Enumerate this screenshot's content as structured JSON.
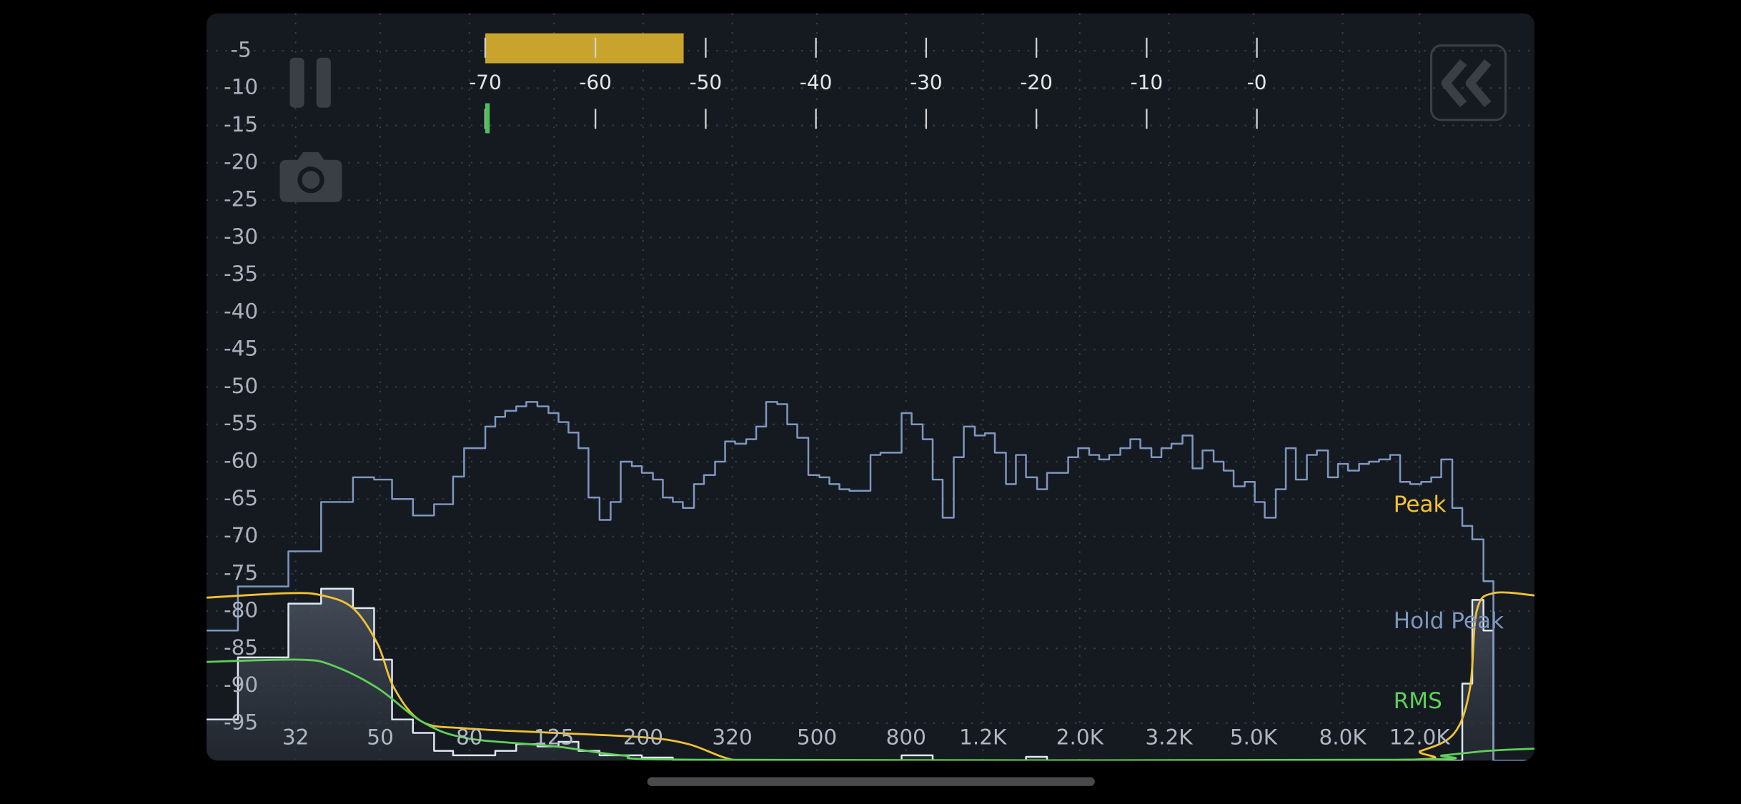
{
  "chart_data": {
    "type": "spectrum",
    "xscale": "log",
    "xlim": [
      20,
      22000
    ],
    "ylim": [
      -100,
      0
    ],
    "xticks": [
      32,
      50,
      80,
      125,
      200,
      320,
      500,
      800,
      {
        "value": 1200,
        "label": "1.2K"
      },
      {
        "value": 2000,
        "label": "2.0K"
      },
      {
        "value": 3200,
        "label": "3.2K"
      },
      {
        "value": 5000,
        "label": "5.0K"
      },
      {
        "value": 8000,
        "label": "8.0K"
      },
      {
        "value": 12000,
        "label": "12.0K"
      }
    ],
    "yticks": [
      -5,
      -10,
      -15,
      -20,
      -25,
      -30,
      -35,
      -40,
      -45,
      -50,
      -55,
      -60,
      -65,
      -70,
      -75,
      -80,
      -85,
      -90,
      -95
    ],
    "grid": true,
    "legend": "right",
    "series": [
      {
        "color": "#dfe8f5",
        "step": true,
        "fill": true,
        "x": [
          20,
          23.6,
          30.8,
          36.6,
          43.3,
          48.4,
          53.2,
          59.4,
          66.4,
          73.4,
          91.7,
          102.4,
          114.5,
          128,
          142.2,
          158.9,
          198.6,
          233.9,
          781.5,
          920.7,
          1506,
          1683,
          15035,
          15849,
          16810,
          17715
        ],
        "values": [
          -94.5,
          -86.2,
          -79,
          -77,
          -79.6,
          -86.5,
          -94.5,
          -96.3,
          -98.7,
          -99.3,
          -98.7,
          -97.8,
          -98.1,
          -97.5,
          -98.7,
          -99.3,
          -99.6,
          -100,
          -99.3,
          -100,
          -99.5,
          -100,
          -89.7,
          -78.5,
          -82.6,
          -100
        ]
      },
      {
        "name": "Hold Peak",
        "color": "#7f97c0",
        "step": true,
        "fill": false,
        "x": [
          20,
          23.6,
          30.8,
          36.6,
          43.3,
          48.4,
          53.2,
          59.4,
          66.4,
          73.4,
          77.8,
          87.0,
          91.7,
          96.6,
          102.4,
          108.0,
          114.5,
          121.4,
          128.0,
          134.9,
          142.2,
          149.9,
          158.9,
          168.5,
          177.7,
          188.4,
          198.6,
          210.6,
          221.9,
          233.9,
          246.6,
          261.5,
          275.6,
          292.2,
          308.1,
          324.8,
          344.4,
          363.0,
          382.6,
          405.7,
          427.6,
          450.8,
          477.9,
          506.7,
          534.1,
          563.0,
          593.5,
          663.3,
          699.2,
          781.5,
          823.9,
          873.5,
          920.7,
          970.5,
          1029,
          1085,
          1150,
          1213,
          1278,
          1355,
          1428,
          1506,
          1597,
          1683,
          1881,
          1983,
          2102,
          2216,
          2336,
          2477,
          2611,
          2753,
          2918,
          3076,
          3243,
          3438,
          3625,
          3821,
          4051,
          4271,
          4502,
          4773,
          5032,
          5304,
          5623,
          5928,
          6249,
          6625,
          6984,
          7404,
          7806,
          8229,
          8724,
          9196,
          9692,
          10276,
          10832,
          11418,
          12106,
          12763,
          13455,
          14262,
          15035,
          15849,
          16810,
          17715
        ],
        "values": [
          -82.6,
          -76.7,
          -72,
          -65.4,
          -62.1,
          -62.4,
          -65,
          -67.2,
          -65.7,
          -62,
          -58.2,
          -55.3,
          -54,
          -53.2,
          -52.6,
          -52,
          -52.6,
          -53.5,
          -54.7,
          -56.1,
          -58.2,
          -64.8,
          -67.8,
          -65.4,
          -60,
          -60.6,
          -61.5,
          -62.4,
          -64.8,
          -65.4,
          -66.2,
          -63,
          -61.8,
          -60,
          -57.3,
          -57.6,
          -57,
          -55.3,
          -52,
          -52.3,
          -55,
          -56.8,
          -61.8,
          -62.1,
          -63,
          -63.7,
          -63.9,
          -59.1,
          -58.8,
          -53.5,
          -55,
          -57,
          -62.4,
          -67.5,
          -59.4,
          -55.3,
          -56.5,
          -56.2,
          -58.8,
          -63,
          -59.1,
          -62.1,
          -63.7,
          -61.5,
          -59.4,
          -58.2,
          -59.1,
          -59.7,
          -59.1,
          -58.2,
          -57,
          -58.2,
          -59.4,
          -58.2,
          -57.6,
          -56.5,
          -60.9,
          -58.5,
          -60,
          -61.2,
          -63.3,
          -62.7,
          -65.4,
          -67.5,
          -63.7,
          -58.2,
          -62.4,
          -59.1,
          -58.5,
          -62.1,
          -60.3,
          -61.2,
          -60.3,
          -60,
          -59.7,
          -59.1,
          -62.7,
          -63,
          -62.7,
          -62.1,
          -59.7,
          -66.2,
          -68.6,
          -70.4,
          -76,
          -100
        ]
      },
      {
        "name": "Peak",
        "color": "#f2c232",
        "step": false,
        "fill": false,
        "x": [
          20,
          30.8,
          36.8,
          43.3,
          49.3,
          53.8,
          62.3,
          78.8,
          125.8,
          200.9,
          253.9,
          321,
          405.7,
          9580,
          12106,
          14430,
          15660,
          16220,
          17715,
          22000
        ],
        "values": [
          -78.2,
          -77.6,
          -77.9,
          -79.6,
          -84.4,
          -90.3,
          -94.8,
          -95.7,
          -96.3,
          -96.9,
          -97.8,
          -99.9,
          -100,
          -100,
          -98.7,
          -96.3,
          -90.3,
          -80,
          -77.6,
          -77.9
        ]
      },
      {
        "name": "RMS",
        "color": "#5fcf5a",
        "step": false,
        "fill": false,
        "x": [
          20,
          32.7,
          39.0,
          49.3,
          62.3,
          78.8,
          125.8,
          178.8,
          285.6,
          10160,
          13610,
          17200,
          22000
        ],
        "values": [
          -86.8,
          -86.5,
          -87.3,
          -90.3,
          -94.8,
          -97,
          -98.1,
          -99.3,
          -99.9,
          -99.9,
          -99.3,
          -98.7,
          -98.4
        ]
      }
    ]
  },
  "level_meter": {
    "xlim": [
      -70,
      0
    ],
    "ticks": [
      -70,
      -60,
      -50,
      -40,
      -30,
      -20,
      -10,
      {
        "value": 0,
        "label": "-0"
      }
    ],
    "peak": -52,
    "peak_color": "#c9a42c",
    "rms": -70,
    "rms_color": "#4fbf5a"
  }
}
